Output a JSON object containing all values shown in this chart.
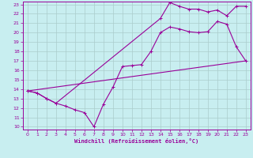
{
  "bg_color": "#c8eef0",
  "line_color": "#990099",
  "grid_color": "#aacccc",
  "xlim": [
    -0.5,
    23.5
  ],
  "ylim": [
    9.7,
    23.3
  ],
  "xticks": [
    0,
    1,
    2,
    3,
    4,
    5,
    6,
    7,
    8,
    9,
    10,
    11,
    12,
    13,
    14,
    15,
    16,
    17,
    18,
    19,
    20,
    21,
    22,
    23
  ],
  "yticks": [
    10,
    11,
    12,
    13,
    14,
    15,
    16,
    17,
    18,
    19,
    20,
    21,
    22,
    23
  ],
  "xlabel": "Windchill (Refroidissement éolien,°C)",
  "line1_x": [
    0,
    1,
    2,
    3,
    4,
    5,
    6,
    7,
    8,
    9,
    10,
    11,
    12,
    13,
    14,
    15,
    16,
    17,
    18,
    19,
    20,
    21,
    22,
    23
  ],
  "line1_y": [
    13.8,
    13.6,
    13.0,
    12.5,
    12.2,
    11.8,
    11.5,
    10.0,
    12.4,
    14.2,
    16.4,
    16.5,
    16.6,
    18.0,
    20.0,
    20.6,
    20.4,
    20.1,
    20.0,
    20.1,
    21.2,
    20.9,
    18.5,
    17.0
  ],
  "line2_x": [
    0,
    1,
    2,
    3,
    14,
    15,
    16,
    17,
    18,
    19,
    20,
    21,
    22,
    23
  ],
  "line2_y": [
    13.8,
    13.6,
    13.0,
    12.5,
    21.5,
    23.2,
    22.8,
    22.5,
    22.5,
    22.2,
    22.4,
    21.8,
    22.8,
    22.8
  ],
  "line3_x": [
    0,
    23
  ],
  "line3_y": [
    13.8,
    17.0
  ]
}
